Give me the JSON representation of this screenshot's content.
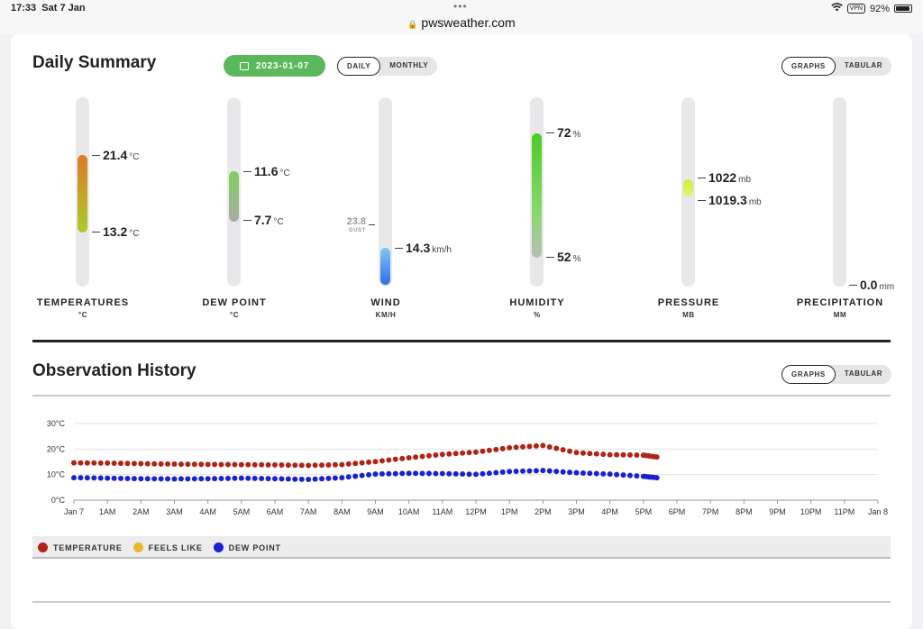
{
  "status": {
    "time": "17:33",
    "date": "Sat 7 Jan",
    "url": "pwsweather.com",
    "vpn": "VPN",
    "battery": "92%"
  },
  "summary": {
    "title": "Daily Summary",
    "date": "2023-01-07",
    "period_toggle": [
      "DAILY",
      "MONTHLY"
    ],
    "view_toggle": [
      "GRAPHS",
      "TABULAR"
    ],
    "gauges": {
      "temperature": {
        "label": "TEMPERATURES",
        "unit_label": "°C",
        "high": "21.4",
        "low": "13.2",
        "unit": "°C"
      },
      "dew_point": {
        "label": "DEW POINT",
        "unit_label": "°C",
        "high": "11.6",
        "low": "7.7",
        "unit": "°C"
      },
      "wind": {
        "label": "WIND",
        "unit_label": "KM/H",
        "gust": "23.8",
        "gust_label": "GUST",
        "speed": "14.3",
        "unit": "km/h"
      },
      "humidity": {
        "label": "HUMIDITY",
        "unit_label": "%",
        "high": "72",
        "low": "52",
        "unit": "%"
      },
      "pressure": {
        "label": "PRESSURE",
        "unit_label": "MB",
        "high": "1022",
        "low": "1019.3",
        "unit": "mb"
      },
      "precipitation": {
        "label": "PRECIPITATION",
        "unit_label": "MM",
        "value": "0.0",
        "unit": "mm"
      }
    },
    "colors": {
      "green": "#5cb85c",
      "temp_top": "#e07a2a",
      "temp_bottom": "#a8cc2a",
      "dew": "#7fcf5a",
      "wind": "#2f78e8",
      "humidity": "#5ccf2e",
      "pressure": "#d8ee3a"
    }
  },
  "history": {
    "title": "Observation History",
    "view_toggle": [
      "GRAPHS",
      "TABULAR"
    ],
    "legend": [
      {
        "name": "TEMPERATURE",
        "color": "#b02418"
      },
      {
        "name": "FEELS LIKE",
        "color": "#e8b830"
      },
      {
        "name": "DEW POINT",
        "color": "#1a22d0"
      }
    ]
  },
  "chart_data": {
    "type": "line",
    "ytick_labels": [
      "0°C",
      "10°C",
      "20°C",
      "30°C"
    ],
    "ylim": [
      0,
      30
    ],
    "x_tick_labels": [
      "Jan 7",
      "1AM",
      "2AM",
      "3AM",
      "4AM",
      "5AM",
      "6AM",
      "7AM",
      "8AM",
      "9AM",
      "10AM",
      "11AM",
      "12PM",
      "1PM",
      "2PM",
      "3PM",
      "4PM",
      "5PM",
      "6PM",
      "7PM",
      "8PM",
      "9PM",
      "10PM",
      "11PM",
      "Jan 8"
    ],
    "x_hours": [
      0,
      1,
      2,
      3,
      4,
      5,
      6,
      7,
      8,
      9,
      10,
      11,
      12,
      13,
      14,
      15,
      16,
      17,
      17.4
    ],
    "series": [
      {
        "name": "TEMPERATURE",
        "color": "#b02418",
        "values": [
          14.6,
          14.5,
          14.3,
          14.1,
          14.0,
          13.9,
          13.8,
          13.6,
          13.9,
          15.1,
          16.6,
          17.9,
          18.8,
          20.5,
          21.4,
          18.6,
          17.8,
          17.6,
          16.9
        ]
      },
      {
        "name": "DEW POINT",
        "color": "#1a22d0",
        "values": [
          8.8,
          8.6,
          8.4,
          8.3,
          8.4,
          8.6,
          8.4,
          8.1,
          8.8,
          10.2,
          10.5,
          10.4,
          10.1,
          11.2,
          11.6,
          10.7,
          10.2,
          9.3,
          8.8
        ]
      }
    ]
  }
}
